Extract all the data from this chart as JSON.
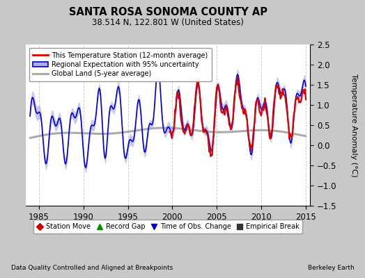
{
  "title": "SANTA ROSA SONOMA COUNTY AP",
  "subtitle": "38.514 N, 122.801 W (United States)",
  "ylabel": "Temperature Anomaly (°C)",
  "footer_left": "Data Quality Controlled and Aligned at Breakpoints",
  "footer_right": "Berkeley Earth",
  "xlim": [
    1983.5,
    2015.5
  ],
  "ylim": [
    -1.5,
    2.5
  ],
  "yticks": [
    -1.5,
    -1.0,
    -0.5,
    0.0,
    0.5,
    1.0,
    1.5,
    2.0,
    2.5
  ],
  "xticks": [
    1985,
    1990,
    1995,
    2000,
    2005,
    2010,
    2015
  ],
  "fig_bg_color": "#c8c8c8",
  "plot_bg_color": "#ffffff",
  "grid_color": "#cccccc",
  "station_color": "#dd0000",
  "regional_color": "#0000cc",
  "regional_fill_color": "#aaaaee",
  "global_color": "#aaaaaa",
  "bottom_legend": [
    {
      "label": "Station Move",
      "marker": "D",
      "color": "#cc0000"
    },
    {
      "label": "Record Gap",
      "marker": "^",
      "color": "#008800"
    },
    {
      "label": "Time of Obs. Change",
      "marker": "v",
      "color": "#0000cc"
    },
    {
      "label": "Empirical Break",
      "marker": "s",
      "color": "#333333"
    }
  ]
}
